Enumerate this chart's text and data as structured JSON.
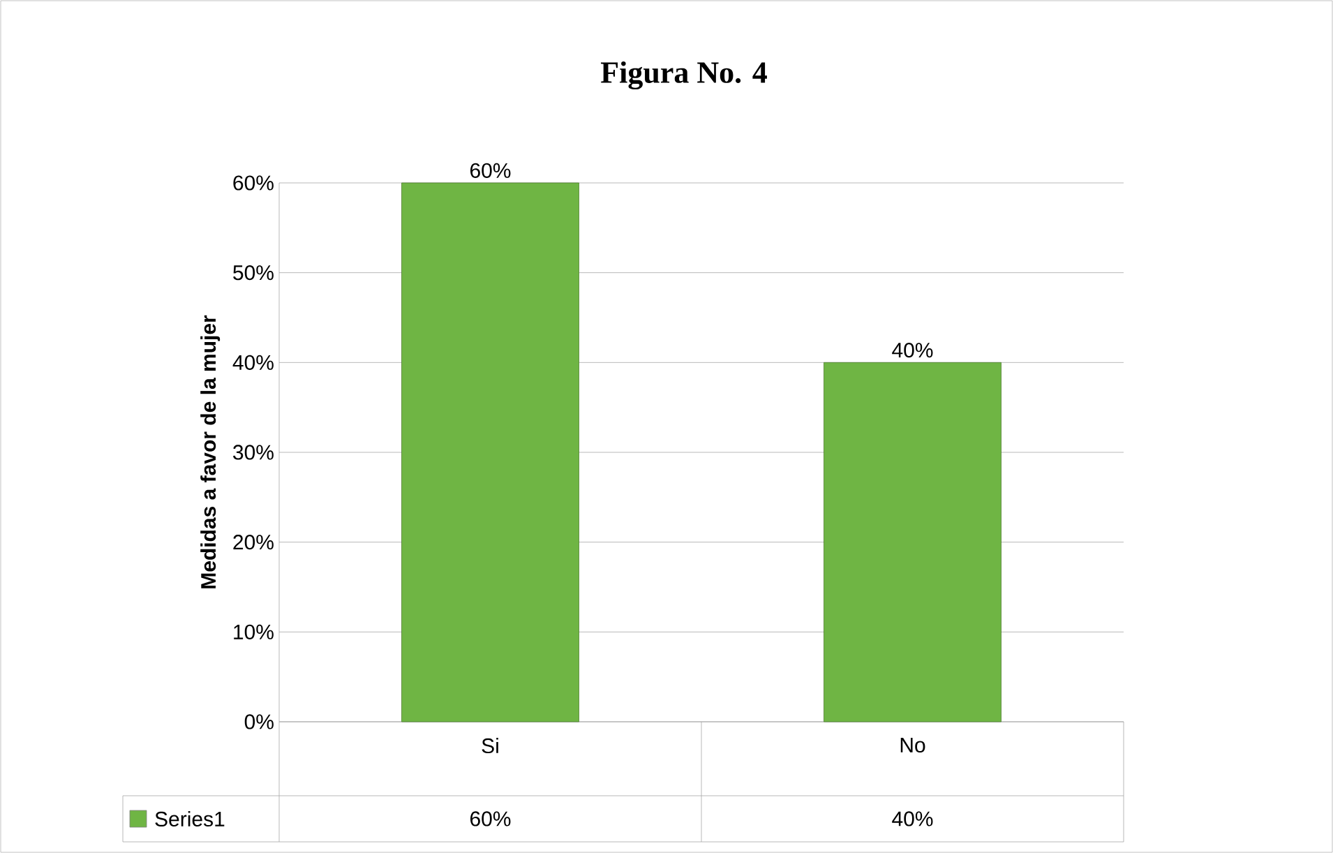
{
  "chart_data": {
    "type": "bar",
    "title": "Figura No. 4",
    "ylabel": "Medidas a favor de la mujer",
    "categories": [
      "Si",
      "No"
    ],
    "series": [
      {
        "name": "Series1",
        "color": "#6fb544",
        "values": [
          60,
          40
        ],
        "value_labels": [
          "60%",
          "40%"
        ]
      }
    ],
    "ylim": [
      0,
      60
    ],
    "yticks": [
      {
        "value": 0,
        "label": "0%"
      },
      {
        "value": 10,
        "label": "10%"
      },
      {
        "value": 20,
        "label": "20%"
      },
      {
        "value": 30,
        "label": "30%"
      },
      {
        "value": 40,
        "label": "40%"
      },
      {
        "value": 50,
        "label": "50%"
      },
      {
        "value": 60,
        "label": "60%"
      }
    ],
    "grid": "y",
    "legend": "bottom"
  }
}
